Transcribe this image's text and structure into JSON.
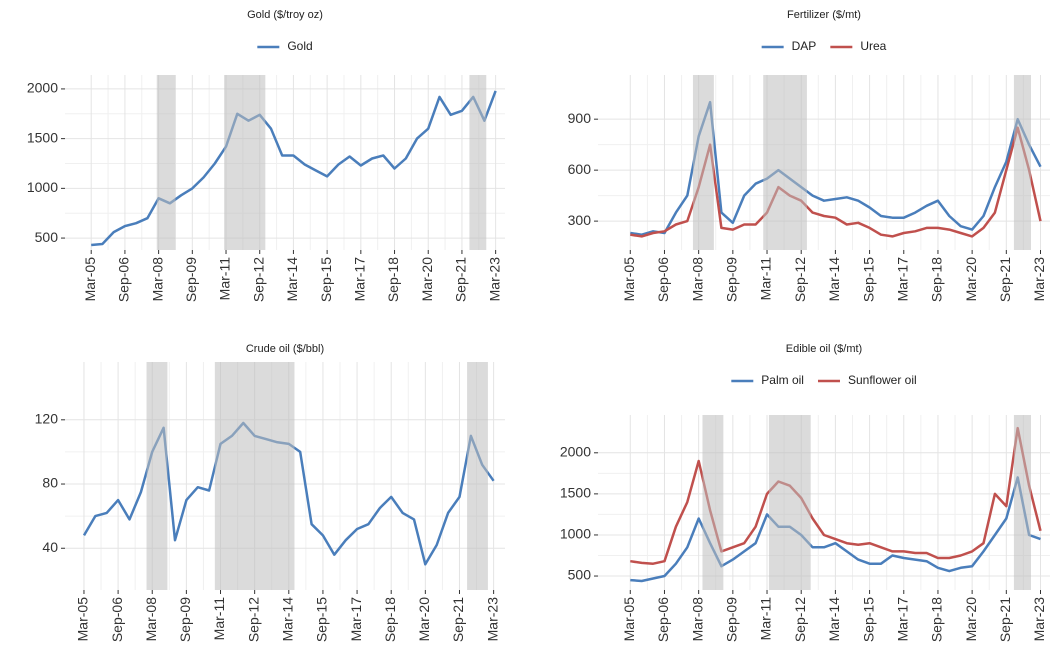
{
  "chart_data": [
    {
      "type": "line",
      "title": "Gold ($/troy oz)",
      "legend": "top",
      "grid": true,
      "x": [
        "2005-03",
        "2005-09",
        "2006-03",
        "2006-09",
        "2007-03",
        "2007-09",
        "2008-03",
        "2008-09",
        "2009-03",
        "2009-09",
        "2010-03",
        "2010-09",
        "2011-03",
        "2011-09",
        "2012-03",
        "2012-09",
        "2013-03",
        "2013-09",
        "2014-03",
        "2014-09",
        "2015-03",
        "2015-09",
        "2016-03",
        "2016-09",
        "2017-03",
        "2017-09",
        "2018-03",
        "2018-09",
        "2019-03",
        "2019-09",
        "2020-03",
        "2020-09",
        "2021-03",
        "2021-09",
        "2022-03",
        "2022-09",
        "2023-03"
      ],
      "series": [
        {
          "name": "Gold",
          "color": "#4a7ebb",
          "values": [
            430,
            440,
            560,
            620,
            650,
            700,
            900,
            850,
            930,
            1000,
            1110,
            1250,
            1420,
            1750,
            1680,
            1740,
            1600,
            1330,
            1330,
            1240,
            1180,
            1120,
            1240,
            1320,
            1230,
            1300,
            1330,
            1200,
            1300,
            1500,
            1600,
            1920,
            1740,
            1780,
            1920,
            1680,
            1980
          ]
        }
      ],
      "shaded": [
        [
          "2008-02",
          "2008-12"
        ],
        [
          "2011-02",
          "2012-12"
        ],
        [
          "2022-01",
          "2022-10"
        ]
      ],
      "xlim": [
        "2004-01",
        "2023-08"
      ],
      "ylim": [
        380,
        2140
      ],
      "yticks": [
        500,
        1000,
        1500,
        2000
      ],
      "xticks": [
        {
          "value": "2005-03",
          "label": "Mar-05"
        },
        {
          "value": "2006-09",
          "label": "Sep-06"
        },
        {
          "value": "2008-03",
          "label": "Mar-08"
        },
        {
          "value": "2009-09",
          "label": "Sep-09"
        },
        {
          "value": "2011-03",
          "label": "Mar-11"
        },
        {
          "value": "2012-09",
          "label": "Sep-12"
        },
        {
          "value": "2014-03",
          "label": "Mar-14"
        },
        {
          "value": "2015-09",
          "label": "Sep-15"
        },
        {
          "value": "2017-03",
          "label": "Mar-17"
        },
        {
          "value": "2018-09",
          "label": "Sep-18"
        },
        {
          "value": "2020-03",
          "label": "Mar-20"
        },
        {
          "value": "2021-09",
          "label": "Sep-21"
        },
        {
          "value": "2023-03",
          "label": "Mar-23"
        }
      ]
    },
    {
      "type": "line",
      "title": "Fertilizer ($/mt)",
      "legend": "top",
      "grid": true,
      "x": [
        "2005-03",
        "2005-09",
        "2006-03",
        "2006-09",
        "2007-03",
        "2007-09",
        "2008-03",
        "2008-09",
        "2009-03",
        "2009-09",
        "2010-03",
        "2010-09",
        "2011-03",
        "2011-09",
        "2012-03",
        "2012-09",
        "2013-03",
        "2013-09",
        "2014-03",
        "2014-09",
        "2015-03",
        "2015-09",
        "2016-03",
        "2016-09",
        "2017-03",
        "2017-09",
        "2018-03",
        "2018-09",
        "2019-03",
        "2019-09",
        "2020-03",
        "2020-09",
        "2021-03",
        "2021-09",
        "2022-03",
        "2022-09",
        "2023-03"
      ],
      "series": [
        {
          "name": "DAP",
          "color": "#4a7ebb",
          "values": [
            230,
            220,
            240,
            230,
            350,
            450,
            800,
            1000,
            350,
            290,
            450,
            520,
            550,
            600,
            550,
            500,
            450,
            420,
            430,
            440,
            420,
            380,
            330,
            320,
            320,
            350,
            390,
            420,
            330,
            270,
            250,
            330,
            500,
            650,
            900,
            750,
            620
          ]
        },
        {
          "name": "Urea",
          "color": "#c0504d",
          "values": [
            220,
            210,
            230,
            240,
            280,
            300,
            500,
            750,
            260,
            250,
            280,
            280,
            350,
            500,
            450,
            420,
            350,
            330,
            320,
            280,
            290,
            260,
            220,
            210,
            230,
            240,
            260,
            260,
            250,
            230,
            210,
            260,
            350,
            600,
            850,
            600,
            300
          ]
        }
      ],
      "shaded": [
        [
          "2007-12",
          "2008-11"
        ],
        [
          "2011-01",
          "2012-12"
        ],
        [
          "2022-01",
          "2022-10"
        ]
      ],
      "xlim": [
        "2003-10",
        "2023-08"
      ],
      "ylim": [
        130,
        1160
      ],
      "yticks": [
        300,
        600,
        900
      ],
      "xticks": [
        {
          "value": "2005-03",
          "label": "Mar-05"
        },
        {
          "value": "2006-09",
          "label": "Sep-06"
        },
        {
          "value": "2008-03",
          "label": "Mar-08"
        },
        {
          "value": "2009-09",
          "label": "Sep-09"
        },
        {
          "value": "2011-03",
          "label": "Mar-11"
        },
        {
          "value": "2012-09",
          "label": "Sep-12"
        },
        {
          "value": "2014-03",
          "label": "Mar-14"
        },
        {
          "value": "2015-09",
          "label": "Sep-15"
        },
        {
          "value": "2017-03",
          "label": "Mar-17"
        },
        {
          "value": "2018-09",
          "label": "Sep-18"
        },
        {
          "value": "2020-03",
          "label": "Mar-20"
        },
        {
          "value": "2021-09",
          "label": "Sep-21"
        },
        {
          "value": "2023-03",
          "label": "Mar-23"
        }
      ]
    },
    {
      "type": "line",
      "title": "Crude oil ($/bbl)",
      "grid": true,
      "x": [
        "2005-03",
        "2005-09",
        "2006-03",
        "2006-09",
        "2007-03",
        "2007-09",
        "2008-03",
        "2008-09",
        "2009-03",
        "2009-09",
        "2010-03",
        "2010-09",
        "2011-03",
        "2011-09",
        "2012-03",
        "2012-09",
        "2013-03",
        "2013-09",
        "2014-03",
        "2014-09",
        "2015-03",
        "2015-09",
        "2016-03",
        "2016-09",
        "2017-03",
        "2017-09",
        "2018-03",
        "2018-09",
        "2019-03",
        "2019-09",
        "2020-03",
        "2020-09",
        "2021-03",
        "2021-09",
        "2022-03",
        "2022-09",
        "2023-03"
      ],
      "series": [
        {
          "name": "Crude oil",
          "color": "#4a7ebb",
          "values": [
            48,
            60,
            62,
            70,
            58,
            75,
            100,
            115,
            45,
            70,
            78,
            76,
            105,
            110,
            118,
            110,
            108,
            106,
            105,
            100,
            55,
            48,
            36,
            45,
            52,
            55,
            65,
            72,
            62,
            58,
            30,
            42,
            62,
            72,
            110,
            92,
            82
          ]
        }
      ],
      "shaded": [
        [
          "2007-12",
          "2008-11"
        ],
        [
          "2010-12",
          "2014-06"
        ],
        [
          "2022-01",
          "2022-12"
        ]
      ],
      "xlim": [
        "2004-05",
        "2023-09"
      ],
      "ylim": [
        14,
        156
      ],
      "yticks": [
        40,
        80,
        120
      ],
      "xticks": [
        {
          "value": "2005-03",
          "label": "Mar-05"
        },
        {
          "value": "2006-09",
          "label": "Sep-06"
        },
        {
          "value": "2008-03",
          "label": "Mar-08"
        },
        {
          "value": "2009-09",
          "label": "Sep-09"
        },
        {
          "value": "2011-03",
          "label": "Mar-11"
        },
        {
          "value": "2012-09",
          "label": "Sep-12"
        },
        {
          "value": "2014-03",
          "label": "Mar-14"
        },
        {
          "value": "2015-09",
          "label": "Sep-15"
        },
        {
          "value": "2017-03",
          "label": "Mar-17"
        },
        {
          "value": "2018-09",
          "label": "Sep-18"
        },
        {
          "value": "2020-03",
          "label": "Mar-20"
        },
        {
          "value": "2021-09",
          "label": "Sep-21"
        },
        {
          "value": "2023-03",
          "label": "Mar-23"
        }
      ]
    },
    {
      "type": "line",
      "title": "Edible oil ($/mt)",
      "legend": "top",
      "grid": true,
      "x": [
        "2005-03",
        "2005-09",
        "2006-03",
        "2006-09",
        "2007-03",
        "2007-09",
        "2008-03",
        "2008-09",
        "2009-03",
        "2009-09",
        "2010-03",
        "2010-09",
        "2011-03",
        "2011-09",
        "2012-03",
        "2012-09",
        "2013-03",
        "2013-09",
        "2014-03",
        "2014-09",
        "2015-03",
        "2015-09",
        "2016-03",
        "2016-09",
        "2017-03",
        "2017-09",
        "2018-03",
        "2018-09",
        "2019-03",
        "2019-09",
        "2020-03",
        "2020-09",
        "2021-03",
        "2021-09",
        "2022-03",
        "2022-09",
        "2023-03"
      ],
      "series": [
        {
          "name": "Palm oil",
          "color": "#4a7ebb",
          "values": [
            450,
            440,
            470,
            500,
            650,
            850,
            1200,
            900,
            620,
            700,
            800,
            900,
            1250,
            1100,
            1100,
            1000,
            850,
            850,
            900,
            800,
            700,
            650,
            650,
            750,
            720,
            700,
            680,
            600,
            560,
            600,
            620,
            800,
            1000,
            1200,
            1700,
            1000,
            950
          ]
        },
        {
          "name": "Sunflower oil",
          "color": "#c0504d",
          "values": [
            680,
            660,
            650,
            680,
            1100,
            1400,
            1900,
            1300,
            800,
            850,
            900,
            1100,
            1500,
            1650,
            1600,
            1450,
            1200,
            1000,
            950,
            900,
            880,
            900,
            850,
            800,
            800,
            780,
            780,
            720,
            720,
            750,
            800,
            900,
            1500,
            1350,
            2300,
            1600,
            1050
          ]
        }
      ],
      "shaded": [
        [
          "2008-05",
          "2009-04"
        ],
        [
          "2011-04",
          "2013-02"
        ],
        [
          "2022-01",
          "2022-10"
        ]
      ],
      "xlim": [
        "2003-10",
        "2023-08"
      ],
      "ylim": [
        330,
        2460
      ],
      "yticks": [
        500,
        1000,
        1500,
        2000
      ],
      "xticks": [
        {
          "value": "2005-03",
          "label": "Mar-05"
        },
        {
          "value": "2006-09",
          "label": "Sep-06"
        },
        {
          "value": "2008-03",
          "label": "Mar-08"
        },
        {
          "value": "2009-09",
          "label": "Sep-09"
        },
        {
          "value": "2011-03",
          "label": "Mar-11"
        },
        {
          "value": "2012-09",
          "label": "Sep-12"
        },
        {
          "value": "2014-03",
          "label": "Mar-14"
        },
        {
          "value": "2015-09",
          "label": "Sep-15"
        },
        {
          "value": "2017-03",
          "label": "Mar-17"
        },
        {
          "value": "2018-09",
          "label": "Sep-18"
        },
        {
          "value": "2020-03",
          "label": "Mar-20"
        },
        {
          "value": "2021-09",
          "label": "Sep-21"
        },
        {
          "value": "2023-03",
          "label": "Mar-23"
        }
      ]
    }
  ]
}
